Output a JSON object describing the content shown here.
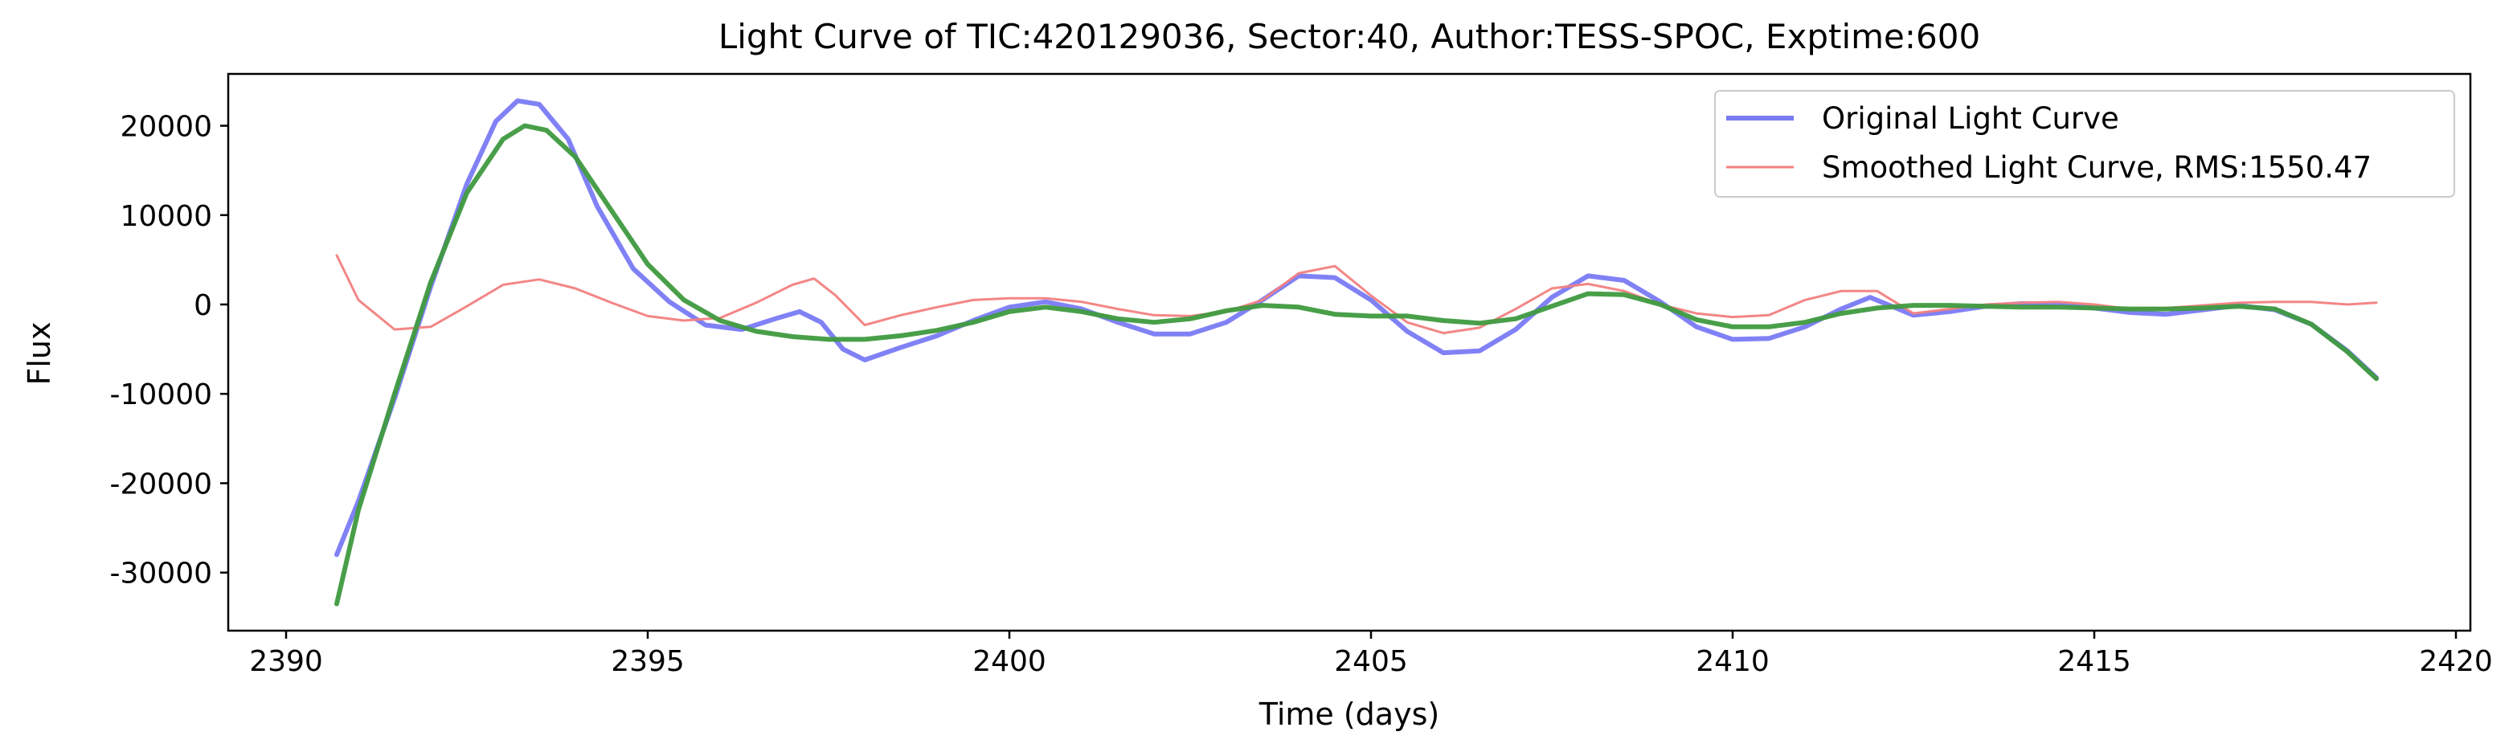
{
  "chart_data": {
    "type": "line",
    "title": "Light Curve of TIC:420129036, Sector:40, Author:TESS-SPOC, Exptime:600",
    "xlabel": "Time (days)",
    "ylabel": "Flux",
    "xlim": [
      2389.2,
      2420.2
    ],
    "ylim": [
      -36500,
      25800
    ],
    "x_ticks": [
      2390,
      2395,
      2400,
      2405,
      2410,
      2415,
      2420
    ],
    "y_ticks": [
      -30000,
      -20000,
      -10000,
      0,
      10000,
      20000
    ],
    "grid": false,
    "legend_position": "upper-right",
    "series": [
      {
        "name": "Original Light Curve",
        "color": "#7a7af5",
        "x": [
          2390.7,
          2391.0,
          2391.5,
          2392.0,
          2392.5,
          2392.9,
          2393.2,
          2393.5,
          2393.9,
          2394.3,
          2394.8,
          2395.3,
          2395.8,
          2396.3,
          2396.8,
          2397.1,
          2397.4,
          2397.7,
          2398.0,
          2398.5,
          2399.0,
          2399.5,
          2400.0,
          2400.5,
          2401.0,
          2401.5,
          2402.0,
          2402.5,
          2403.0,
          2403.5,
          2404.0,
          2404.5,
          2405.0,
          2405.5,
          2406.0,
          2406.5,
          2407.0,
          2407.5,
          2408.0,
          2408.5,
          2409.0,
          2409.5,
          2410.0,
          2410.5,
          2411.0,
          2411.5,
          2411.9,
          2412.5,
          2413.0,
          2413.5,
          2414.0,
          2414.5,
          2415.0,
          2415.5,
          2416.0,
          2416.5,
          2417.0,
          2417.5,
          2418.0,
          2418.5,
          2418.9
        ],
        "y": [
          -28000,
          -22000,
          -10500,
          2000,
          13500,
          20500,
          22800,
          22400,
          18500,
          11000,
          4000,
          300,
          -2300,
          -2800,
          -1500,
          -800,
          -2000,
          -5000,
          -6200,
          -4800,
          -3500,
          -1800,
          -300,
          300,
          -500,
          -2000,
          -3300,
          -3300,
          -2000,
          500,
          3200,
          3000,
          500,
          -3000,
          -5400,
          -5200,
          -2800,
          800,
          3200,
          2700,
          300,
          -2500,
          -3900,
          -3800,
          -2500,
          -500,
          800,
          -1200,
          -800,
          -200,
          100,
          0,
          -400,
          -900,
          -1100,
          -600,
          -100,
          -600,
          -2200,
          -5200,
          -8200
        ]
      },
      {
        "name": "Smoothed Light Curve, RMS:1550.47",
        "color": "#f28080",
        "x": [
          2390.7,
          2391.0,
          2391.5,
          2392.0,
          2392.5,
          2393.0,
          2393.5,
          2394.0,
          2394.5,
          2395.0,
          2395.5,
          2396.0,
          2396.5,
          2397.0,
          2397.3,
          2397.6,
          2398.0,
          2398.5,
          2399.0,
          2399.5,
          2400.0,
          2400.5,
          2401.0,
          2401.5,
          2402.0,
          2402.5,
          2403.0,
          2403.5,
          2404.0,
          2404.5,
          2405.0,
          2405.5,
          2406.0,
          2406.5,
          2407.0,
          2407.5,
          2408.0,
          2408.5,
          2409.0,
          2409.5,
          2410.0,
          2410.5,
          2411.0,
          2411.5,
          2412.0,
          2412.5,
          2413.0,
          2413.5,
          2414.0,
          2414.5,
          2415.0,
          2415.5,
          2416.0,
          2416.5,
          2417.0,
          2417.5,
          2418.0,
          2418.5,
          2418.9
        ],
        "y": [
          5500,
          500,
          -2800,
          -2500,
          -200,
          2200,
          2800,
          1800,
          200,
          -1300,
          -1800,
          -1500,
          200,
          2200,
          2900,
          1000,
          -2300,
          -1200,
          -300,
          500,
          700,
          700,
          300,
          -500,
          -1200,
          -1300,
          -800,
          500,
          3500,
          4300,
          1000,
          -2000,
          -3200,
          -2600,
          -500,
          1800,
          2300,
          1500,
          0,
          -1000,
          -1400,
          -1200,
          500,
          1500,
          1500,
          -1000,
          -500,
          0,
          200,
          300,
          0,
          -500,
          -400,
          -100,
          200,
          300,
          300,
          0,
          200
        ]
      },
      {
        "name": "",
        "color": "#3f9a3f",
        "x": [
          2390.7,
          2391.0,
          2391.5,
          2392.0,
          2392.5,
          2393.0,
          2393.3,
          2393.6,
          2394.0,
          2394.5,
          2395.0,
          2395.5,
          2396.0,
          2396.5,
          2397.0,
          2397.5,
          2398.0,
          2398.5,
          2399.0,
          2399.5,
          2400.0,
          2400.5,
          2401.0,
          2401.5,
          2402.0,
          2402.5,
          2403.0,
          2403.5,
          2404.0,
          2404.5,
          2405.0,
          2405.5,
          2406.0,
          2406.5,
          2407.0,
          2407.5,
          2408.0,
          2408.5,
          2409.0,
          2409.5,
          2410.0,
          2410.5,
          2411.0,
          2411.5,
          2412.0,
          2412.5,
          2413.0,
          2413.5,
          2414.0,
          2414.5,
          2415.0,
          2415.5,
          2416.0,
          2416.5,
          2417.0,
          2417.5,
          2418.0,
          2418.5,
          2418.9
        ],
        "y": [
          -33500,
          -23000,
          -10000,
          2500,
          12500,
          18500,
          20000,
          19500,
          16500,
          10500,
          4500,
          500,
          -1800,
          -3000,
          -3600,
          -3900,
          -3900,
          -3500,
          -2900,
          -2000,
          -800,
          -300,
          -800,
          -1600,
          -2000,
          -1600,
          -700,
          -100,
          -300,
          -1100,
          -1300,
          -1300,
          -1800,
          -2100,
          -1600,
          -200,
          1200,
          1100,
          0,
          -1700,
          -2500,
          -2500,
          -2000,
          -1000,
          -400,
          -100,
          -100,
          -200,
          -300,
          -300,
          -400,
          -500,
          -500,
          -400,
          -200,
          -500,
          -2200,
          -5300,
          -8300
        ]
      }
    ]
  }
}
